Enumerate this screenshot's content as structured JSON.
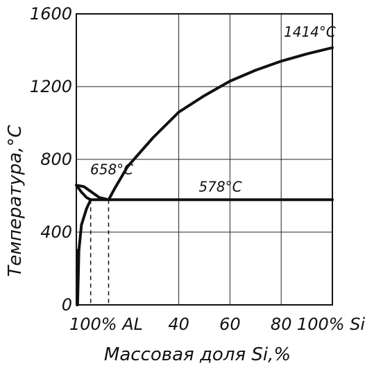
{
  "chart_data": {
    "type": "line",
    "title": "",
    "xlabel": "Массовая доля Si,%",
    "ylabel": "Температура,°С",
    "xlim": [
      0,
      100
    ],
    "ylim": [
      0,
      1600
    ],
    "grid": true,
    "x_ticks": [
      {
        "value": 0,
        "label": "100% AL"
      },
      {
        "value": 40,
        "label": "40"
      },
      {
        "value": 60,
        "label": "60"
      },
      {
        "value": 80,
        "label": "80"
      },
      {
        "value": 100,
        "label": "100% Si"
      }
    ],
    "y_ticks": [
      {
        "value": 0,
        "label": "0"
      },
      {
        "value": 400,
        "label": "400"
      },
      {
        "value": 800,
        "label": "800"
      },
      {
        "value": 1200,
        "label": "1200"
      },
      {
        "value": 1600,
        "label": "1600"
      }
    ],
    "series": [
      {
        "id": "liquidus-al",
        "x": [
          0,
          3,
          6,
          9,
          12.6
        ],
        "y": [
          658,
          650,
          620,
          590,
          578
        ]
      },
      {
        "id": "liquidus-si",
        "x": [
          12.6,
          15,
          20,
          30,
          40,
          50,
          60,
          70,
          80,
          90,
          100
        ],
        "y": [
          578,
          640,
          760,
          920,
          1060,
          1150,
          1230,
          1290,
          1340,
          1380,
          1414
        ]
      },
      {
        "id": "solidus-al",
        "x": [
          0,
          2,
          4,
          5.6
        ],
        "y": [
          658,
          620,
          590,
          578
        ]
      },
      {
        "id": "eutectic-line",
        "x": [
          5.6,
          100
        ],
        "y": [
          578,
          578
        ]
      },
      {
        "id": "solvus",
        "x": [
          0.5,
          1,
          2,
          4,
          5.6
        ],
        "y": [
          0,
          300,
          440,
          530,
          578
        ]
      },
      {
        "id": "solvus-inner",
        "x": [
          0.3,
          0.5
        ],
        "y": [
          0,
          300
        ]
      }
    ],
    "guides": [
      {
        "x": 5.6,
        "y": 578
      },
      {
        "x": 12.6,
        "y": 578
      },
      {
        "x": 0.5,
        "y": 300
      }
    ],
    "annotations": [
      {
        "text": "658°C",
        "x": 0,
        "y": 658
      },
      {
        "text": "578°C",
        "x": 60,
        "y": 578
      },
      {
        "text": "1414°C",
        "x": 100,
        "y": 1414
      }
    ]
  }
}
